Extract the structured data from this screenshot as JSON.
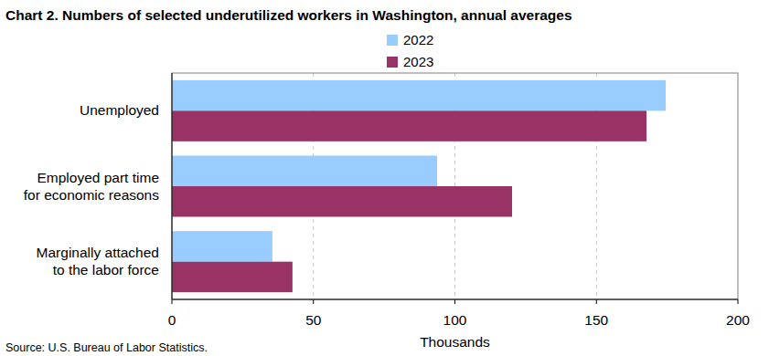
{
  "chart_data": {
    "type": "bar",
    "orientation": "horizontal",
    "title": "Chart 2. Numbers of selected underutilized workers in Washington, annual averages",
    "categories": [
      "Unemployed",
      "Employed part time\nfor economic reasons",
      "Marginally attached\nto the labor force"
    ],
    "series": [
      {
        "name": "2022",
        "color": "#99ccff",
        "values": [
          174.5,
          93.7,
          35.5
        ]
      },
      {
        "name": "2023",
        "color": "#993366",
        "values": [
          167.7,
          120.2,
          42.6
        ]
      }
    ],
    "xlim": [
      0,
      200
    ],
    "xticks": [
      0,
      50,
      100,
      150,
      200
    ],
    "x_label": "Thousands",
    "source": "Source: U.S. Bureau of Labor Statistics.",
    "grid": true,
    "legend": "top"
  }
}
